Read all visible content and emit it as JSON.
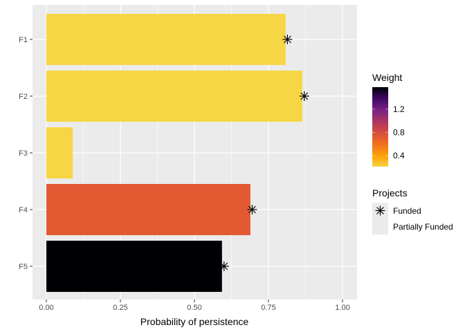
{
  "chart_data": {
    "type": "bar",
    "orientation": "horizontal",
    "categories": [
      "F1",
      "F2",
      "F3",
      "F4",
      "F5"
    ],
    "values": [
      0.808,
      0.864,
      0.089,
      0.689,
      0.593
    ],
    "weight": [
      0.21,
      0.21,
      0.21,
      0.62,
      1.58
    ],
    "bar_colors": [
      "#F6D645",
      "#F6D645",
      "#F6D645",
      "#E35932",
      "#000004"
    ],
    "funded_points": [
      {
        "category": "F1",
        "x": 0.814
      },
      {
        "category": "F2",
        "x": 0.871
      },
      {
        "category": "F4",
        "x": 0.695
      },
      {
        "category": "F5",
        "x": 0.6
      }
    ],
    "xlabel": "Probability of persistence",
    "ylabel": "",
    "xlim": [
      -0.045,
      1.05
    ],
    "xticks": [
      "0.00",
      "0.25",
      "0.50",
      "0.75",
      "1.00"
    ],
    "grid": true,
    "legend_placement": "right",
    "legends": {
      "weight": {
        "title": "Weight",
        "ticks": [
          "0.4",
          "0.8",
          "1.2"
        ],
        "range": [
          0.21,
          1.58
        ],
        "palette": "inferno"
      },
      "projects": {
        "title": "Projects",
        "items": [
          "Funded",
          "Partially Funded"
        ]
      }
    }
  }
}
